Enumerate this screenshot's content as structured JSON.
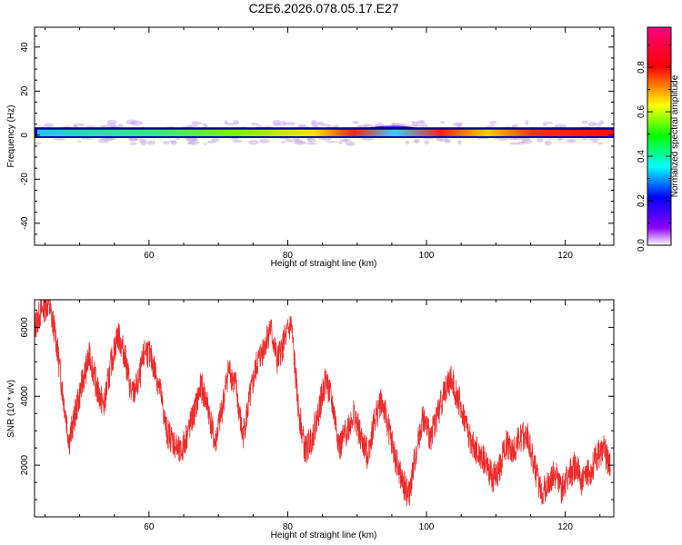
{
  "figure_title": "C2E6.2026.078.05.17.E27",
  "chart_data": [
    {
      "type": "heatmap",
      "title": "C2E6.2026.078.05.17.E27",
      "xlabel": "Height of straight line (km)",
      "ylabel": "Frequency (Hz)",
      "xlim": [
        43.5,
        127
      ],
      "ylim": [
        -50,
        49
      ],
      "xticks": [
        60,
        80,
        100,
        120
      ],
      "yticks": [
        -40,
        -20,
        0,
        20,
        40
      ],
      "grid": false,
      "colorbar": {
        "label": "Normalized spectral amplitude",
        "range": [
          0.0,
          0.98
        ],
        "ticks": [
          0.0,
          0.2,
          0.4,
          0.6,
          0.8
        ],
        "colormap": [
          "#ffffff",
          "#8b00ff",
          "#0000ff",
          "#00ffff",
          "#00ff00",
          "#ffff00",
          "#ff0000",
          "#ff0080"
        ]
      },
      "band": {
        "center_hz": 1.0,
        "half_width_hz": 1.5,
        "scatter_halo_hz": 5,
        "segments": [
          {
            "x": 43.5,
            "amp": 0.45
          },
          {
            "x": 50,
            "amp": 0.45
          },
          {
            "x": 60,
            "amp": 0.5
          },
          {
            "x": 70,
            "amp": 0.6
          },
          {
            "x": 75,
            "amp": 0.62
          },
          {
            "x": 80,
            "amp": 0.6
          },
          {
            "x": 86,
            "amp": 0.85
          },
          {
            "x": 90,
            "amp": 0.9
          },
          {
            "x": 95,
            "amp": 0.55
          },
          {
            "x": 98,
            "amp": 0.75
          },
          {
            "x": 102,
            "amp": 0.95
          },
          {
            "x": 105,
            "amp": 0.7
          },
          {
            "x": 110,
            "amp": 0.85
          },
          {
            "x": 115,
            "amp": 0.7
          },
          {
            "x": 120,
            "amp": 0.9
          },
          {
            "x": 127,
            "amp": 0.95
          }
        ]
      }
    },
    {
      "type": "line",
      "xlabel": "Height of straight line (km)",
      "ylabel": "SNR (10 * v/v)",
      "xlim": [
        43.5,
        127
      ],
      "ylim": [
        500,
        6800
      ],
      "xticks": [
        60,
        80,
        100,
        120
      ],
      "yticks": [
        2000,
        4000,
        6000
      ],
      "grid": false,
      "series": [
        {
          "name": "SNR",
          "color": "#ee2a2a",
          "x": [
            43.5,
            44.5,
            45.5,
            46.5,
            47.5,
            48.5,
            49.5,
            50.5,
            51.5,
            52.5,
            53.5,
            54.5,
            55.5,
            56.5,
            57.5,
            58.5,
            59.5,
            60.5,
            61.5,
            62.5,
            63.5,
            64.5,
            65.5,
            66.5,
            67.5,
            68.5,
            69.5,
            70.5,
            71.5,
            72.5,
            73.5,
            74.5,
            75.5,
            76.5,
            77.5,
            78.5,
            79.5,
            80.5,
            81.5,
            82.5,
            83.5,
            84.5,
            85.5,
            86.5,
            87.5,
            88.5,
            89.5,
            90.5,
            91.5,
            92.5,
            93.5,
            94.5,
            95.5,
            96.5,
            97.5,
            98.5,
            99.5,
            100.5,
            101.5,
            102.5,
            103.5,
            104.5,
            105.5,
            106.5,
            107.5,
            108.5,
            109.5,
            110.5,
            111.5,
            112.5,
            113.5,
            114.5,
            115.5,
            116.5,
            117.5,
            118.5,
            119.5,
            120.5,
            121.5,
            122.5,
            123.5,
            124.5,
            125.5,
            126.5
          ],
          "y": [
            6000,
            6500,
            6700,
            5800,
            4200,
            2700,
            3600,
            4500,
            5200,
            4200,
            3700,
            4900,
            5800,
            5200,
            4000,
            4400,
            5400,
            5000,
            4300,
            3000,
            2700,
            2300,
            2900,
            3500,
            4300,
            3700,
            2600,
            3600,
            4800,
            4300,
            2800,
            3900,
            4900,
            5400,
            6000,
            5000,
            5600,
            6100,
            3700,
            2400,
            2800,
            3600,
            4500,
            3700,
            2500,
            3000,
            3500,
            2800,
            2300,
            3300,
            3900,
            3100,
            2200,
            1500,
            1100,
            2400,
            3400,
            2800,
            3400,
            4100,
            4500,
            4000,
            3300,
            2600,
            2300,
            2100,
            1600,
            1900,
            2600,
            2400,
            2800,
            2900,
            2000,
            1200,
            1400,
            1800,
            1300,
            1700,
            2000,
            1500,
            1800,
            2200,
            2500,
            1900
          ]
        }
      ]
    }
  ]
}
